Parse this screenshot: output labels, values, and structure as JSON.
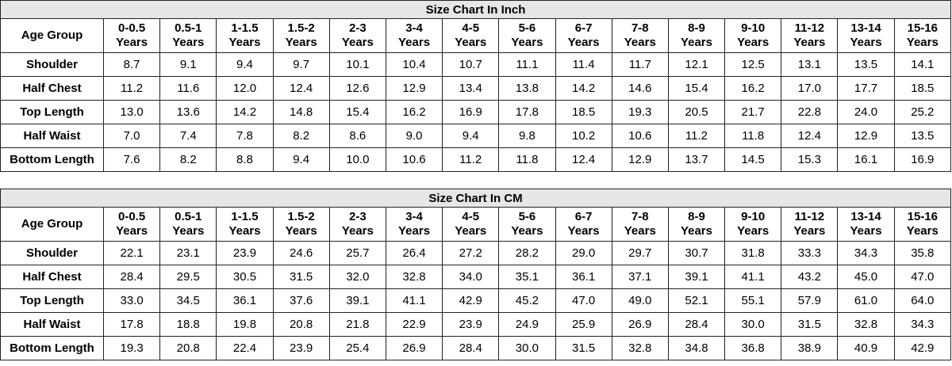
{
  "inch_chart": {
    "title": "Size Chart In Inch",
    "header_label": "Age Group",
    "columns": [
      {
        "range": "0-0.5",
        "unit": "Years"
      },
      {
        "range": "0.5-1",
        "unit": "Years"
      },
      {
        "range": "1-1.5",
        "unit": "Years"
      },
      {
        "range": "1.5-2",
        "unit": "Years"
      },
      {
        "range": "2-3",
        "unit": "Years"
      },
      {
        "range": "3-4",
        "unit": "Years"
      },
      {
        "range": "4-5",
        "unit": "Years"
      },
      {
        "range": "5-6",
        "unit": "Years"
      },
      {
        "range": "6-7",
        "unit": "Years"
      },
      {
        "range": "7-8",
        "unit": "Years"
      },
      {
        "range": "8-9",
        "unit": "Years"
      },
      {
        "range": "9-10",
        "unit": "Years"
      },
      {
        "range": "11-12",
        "unit": "Years"
      },
      {
        "range": "13-14",
        "unit": "Years"
      },
      {
        "range": "15-16",
        "unit": "Years"
      }
    ],
    "rows": [
      {
        "label": "Shoulder",
        "values": [
          "8.7",
          "9.1",
          "9.4",
          "9.7",
          "10.1",
          "10.4",
          "10.7",
          "11.1",
          "11.4",
          "11.7",
          "12.1",
          "12.5",
          "13.1",
          "13.5",
          "14.1"
        ]
      },
      {
        "label": "Half Chest",
        "values": [
          "11.2",
          "11.6",
          "12.0",
          "12.4",
          "12.6",
          "12.9",
          "13.4",
          "13.8",
          "14.2",
          "14.6",
          "15.4",
          "16.2",
          "17.0",
          "17.7",
          "18.5"
        ]
      },
      {
        "label": "Top Length",
        "values": [
          "13.0",
          "13.6",
          "14.2",
          "14.8",
          "15.4",
          "16.2",
          "16.9",
          "17.8",
          "18.5",
          "19.3",
          "20.5",
          "21.7",
          "22.8",
          "24.0",
          "25.2"
        ]
      },
      {
        "label": "Half Waist",
        "values": [
          "7.0",
          "7.4",
          "7.8",
          "8.2",
          "8.6",
          "9.0",
          "9.4",
          "9.8",
          "10.2",
          "10.6",
          "11.2",
          "11.8",
          "12.4",
          "12.9",
          "13.5"
        ]
      },
      {
        "label": "Bottom Length",
        "values": [
          "7.6",
          "8.2",
          "8.8",
          "9.4",
          "10.0",
          "10.6",
          "11.2",
          "11.8",
          "12.4",
          "12.9",
          "13.7",
          "14.5",
          "15.3",
          "16.1",
          "16.9"
        ]
      }
    ]
  },
  "cm_chart": {
    "title": "Size Chart In CM",
    "header_label": "Age Group",
    "columns": [
      {
        "range": "0-0.5",
        "unit": "Years"
      },
      {
        "range": "0.5-1",
        "unit": "Years"
      },
      {
        "range": "1-1.5",
        "unit": "Years"
      },
      {
        "range": "1.5-2",
        "unit": "Years"
      },
      {
        "range": "2-3",
        "unit": "Years"
      },
      {
        "range": "3-4",
        "unit": "Years"
      },
      {
        "range": "4-5",
        "unit": "Years"
      },
      {
        "range": "5-6",
        "unit": "Years"
      },
      {
        "range": "6-7",
        "unit": "Years"
      },
      {
        "range": "7-8",
        "unit": "Years"
      },
      {
        "range": "8-9",
        "unit": "Years"
      },
      {
        "range": "9-10",
        "unit": "Years"
      },
      {
        "range": "11-12",
        "unit": "Years"
      },
      {
        "range": "13-14",
        "unit": "Years"
      },
      {
        "range": "15-16",
        "unit": "Years"
      }
    ],
    "rows": [
      {
        "label": "Shoulder",
        "values": [
          "22.1",
          "23.1",
          "23.9",
          "24.6",
          "25.7",
          "26.4",
          "27.2",
          "28.2",
          "29.0",
          "29.7",
          "30.7",
          "31.8",
          "33.3",
          "34.3",
          "35.8"
        ]
      },
      {
        "label": "Half Chest",
        "values": [
          "28.4",
          "29.5",
          "30.5",
          "31.5",
          "32.0",
          "32.8",
          "34.0",
          "35.1",
          "36.1",
          "37.1",
          "39.1",
          "41.1",
          "43.2",
          "45.0",
          "47.0"
        ]
      },
      {
        "label": "Top Length",
        "values": [
          "33.0",
          "34.5",
          "36.1",
          "37.6",
          "39.1",
          "41.1",
          "42.9",
          "45.2",
          "47.0",
          "49.0",
          "52.1",
          "55.1",
          "57.9",
          "61.0",
          "64.0"
        ]
      },
      {
        "label": "Half Waist",
        "values": [
          "17.8",
          "18.8",
          "19.8",
          "20.8",
          "21.8",
          "22.9",
          "23.9",
          "24.9",
          "25.9",
          "26.9",
          "28.4",
          "30.0",
          "31.5",
          "32.8",
          "34.3"
        ]
      },
      {
        "label": "Bottom Length",
        "values": [
          "19.3",
          "20.8",
          "22.4",
          "23.9",
          "25.4",
          "26.9",
          "28.4",
          "30.0",
          "31.5",
          "32.8",
          "34.8",
          "36.8",
          "38.9",
          "40.9",
          "42.9"
        ]
      }
    ]
  }
}
